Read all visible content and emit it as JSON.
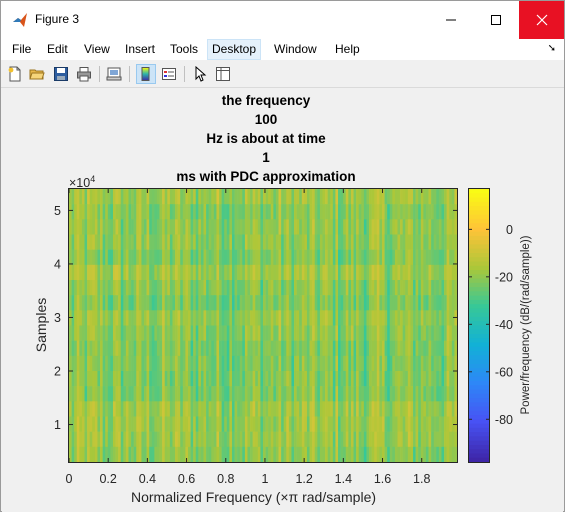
{
  "window": {
    "title": "Figure 3"
  },
  "menubar": {
    "items": [
      "File",
      "Edit",
      "View",
      "Insert",
      "Tools",
      "Desktop",
      "Window",
      "Help"
    ],
    "active_item": "Desktop"
  },
  "toolbar": {
    "buttons": [
      {
        "name": "new-figure-icon"
      },
      {
        "name": "open-file-icon"
      },
      {
        "name": "save-figure-icon"
      },
      {
        "name": "print-figure-icon"
      },
      {
        "name": "link-plot-icon"
      },
      {
        "name": "insert-colorbar-icon",
        "pressed": true
      },
      {
        "name": "insert-legend-icon"
      },
      {
        "name": "pointer-icon"
      },
      {
        "name": "property-inspector-icon"
      }
    ]
  },
  "figure": {
    "title_lines": [
      "the frequency",
      "100",
      "Hz is about at time",
      "1",
      "ms with PDC approximation"
    ],
    "y_exponent": "×10",
    "y_exponent_power": "4"
  },
  "chart_data": {
    "type": "heatmap",
    "xlabel": "Normalized Frequency  (×π rad/sample)",
    "ylabel": "Samples",
    "x_ticks": [
      "0",
      "0.2",
      "0.4",
      "0.6",
      "0.8",
      "1",
      "1.2",
      "1.4",
      "1.6",
      "1.8"
    ],
    "x_tick_values": [
      0,
      0.2,
      0.4,
      0.6,
      0.8,
      1.0,
      1.2,
      1.4,
      1.6,
      1.8
    ],
    "y_ticks": [
      "1",
      "2",
      "3",
      "4",
      "5"
    ],
    "y_tick_values": [
      10000,
      20000,
      30000,
      40000,
      50000
    ],
    "xlim": [
      0,
      1.98
    ],
    "ylim": [
      3000,
      54000
    ],
    "colormap": "parula",
    "colorbar": {
      "label": "Power/frequency (dB/(rad/sample))",
      "ticks": [
        "0",
        "-20",
        "-40",
        "-60",
        "-80"
      ],
      "tick_values": [
        0,
        -20,
        -40,
        -60,
        -80
      ],
      "range": [
        -98,
        17
      ]
    },
    "value_range_shown": [
      -35,
      -5
    ],
    "grid": false
  }
}
